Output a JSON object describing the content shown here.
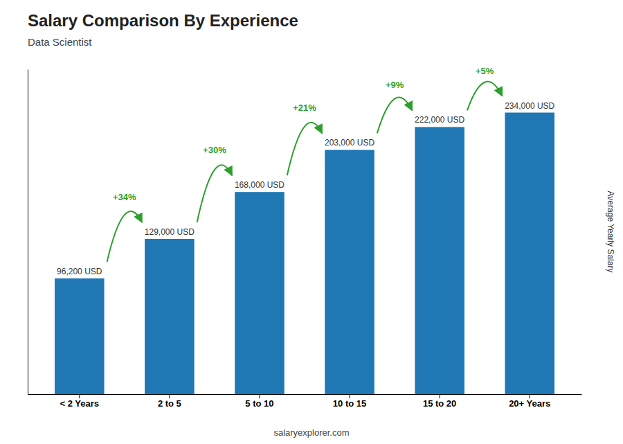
{
  "chart_data": {
    "type": "bar",
    "title": "Salary Comparison By Experience",
    "subtitle": "Data Scientist",
    "categories": [
      "< 2 Years",
      "2 to 5",
      "5 to 10",
      "10 to 15",
      "15 to 20",
      "20+ Years"
    ],
    "values": [
      96200,
      129000,
      168000,
      203000,
      222000,
      234000
    ],
    "value_labels": [
      "96,200 USD",
      "129,000 USD",
      "168,000 USD",
      "203,000 USD",
      "222,000 USD",
      "234,000 USD"
    ],
    "data_labels": true,
    "annotations": [
      "+34%",
      "+30%",
      "+21%",
      "+9%",
      "+5%"
    ],
    "ylabel": "Average Yearly Salary",
    "footer": "salaryexplorer.com",
    "ylim": [
      0,
      270000
    ],
    "tick_labels": "x",
    "grid": false
  }
}
